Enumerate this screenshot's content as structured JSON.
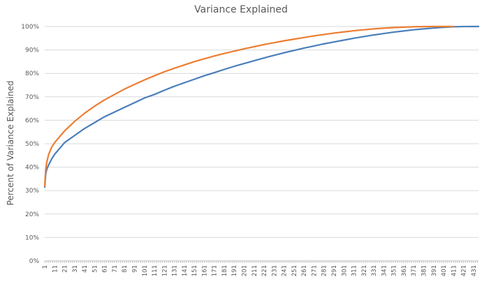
{
  "chart_data": {
    "type": "line",
    "title": "Variance Explained",
    "xlabel": "",
    "ylabel": "Percent of Variance Explained",
    "x_start": 1,
    "x_end": 436,
    "x_tick_labels": [
      "1",
      "11",
      "21",
      "31",
      "41",
      "51",
      "61",
      "71",
      "81",
      "91",
      "101",
      "111",
      "121",
      "131",
      "141",
      "151",
      "161",
      "171",
      "181",
      "191",
      "201",
      "211",
      "221",
      "231",
      "241",
      "251",
      "261",
      "271",
      "281",
      "291",
      "301",
      "311",
      "321",
      "331",
      "341",
      "351",
      "361",
      "371",
      "381",
      "391",
      "401",
      "411",
      "421",
      "431"
    ],
    "ylim": [
      0,
      100
    ],
    "y_tick_labels": [
      "0%",
      "10%",
      "20%",
      "30%",
      "40%",
      "50%",
      "60%",
      "70%",
      "80%",
      "90%",
      "100%"
    ],
    "grid": true,
    "legend": "none",
    "series": [
      {
        "color": "#4a7ebb",
        "points": [
          [
            1,
            31.5
          ],
          [
            2,
            37
          ],
          [
            3,
            39
          ],
          [
            5,
            41
          ],
          [
            8,
            43.5
          ],
          [
            11,
            45.5
          ],
          [
            16,
            48
          ],
          [
            21,
            50.5
          ],
          [
            31,
            53.5
          ],
          [
            41,
            56.5
          ],
          [
            51,
            59
          ],
          [
            61,
            61.5
          ],
          [
            71,
            63.5
          ],
          [
            81,
            65.5
          ],
          [
            91,
            67.5
          ],
          [
            101,
            69.5
          ],
          [
            111,
            71
          ],
          [
            121,
            72.8
          ],
          [
            131,
            74.5
          ],
          [
            141,
            76
          ],
          [
            151,
            77.5
          ],
          [
            161,
            79
          ],
          [
            171,
            80.3
          ],
          [
            181,
            81.7
          ],
          [
            191,
            83
          ],
          [
            201,
            84.2
          ],
          [
            211,
            85.4
          ],
          [
            221,
            86.6
          ],
          [
            231,
            87.7
          ],
          [
            241,
            88.8
          ],
          [
            251,
            89.8
          ],
          [
            261,
            90.8
          ],
          [
            271,
            91.7
          ],
          [
            281,
            92.6
          ],
          [
            291,
            93.4
          ],
          [
            301,
            94.2
          ],
          [
            311,
            95
          ],
          [
            321,
            95.7
          ],
          [
            331,
            96.4
          ],
          [
            341,
            97
          ],
          [
            351,
            97.6
          ],
          [
            361,
            98.1
          ],
          [
            371,
            98.6
          ],
          [
            381,
            99
          ],
          [
            391,
            99.35
          ],
          [
            401,
            99.65
          ],
          [
            411,
            99.88
          ],
          [
            421,
            99.98
          ],
          [
            431,
            100
          ],
          [
            436,
            100
          ]
        ]
      },
      {
        "color": "#ed7d31",
        "points": [
          [
            1,
            32
          ],
          [
            2,
            39
          ],
          [
            3,
            42
          ],
          [
            5,
            45.5
          ],
          [
            8,
            48.5
          ],
          [
            11,
            50.5
          ],
          [
            16,
            53
          ],
          [
            21,
            55.5
          ],
          [
            31,
            59.5
          ],
          [
            41,
            63
          ],
          [
            51,
            66
          ],
          [
            61,
            68.7
          ],
          [
            71,
            71
          ],
          [
            81,
            73.3
          ],
          [
            91,
            75.3
          ],
          [
            101,
            77.2
          ],
          [
            111,
            79
          ],
          [
            121,
            80.7
          ],
          [
            131,
            82.2
          ],
          [
            141,
            83.6
          ],
          [
            151,
            85
          ],
          [
            161,
            86.2
          ],
          [
            171,
            87.4
          ],
          [
            181,
            88.5
          ],
          [
            191,
            89.5
          ],
          [
            201,
            90.5
          ],
          [
            211,
            91.4
          ],
          [
            221,
            92.3
          ],
          [
            231,
            93.1
          ],
          [
            241,
            93.9
          ],
          [
            251,
            94.6
          ],
          [
            261,
            95.3
          ],
          [
            271,
            96
          ],
          [
            281,
            96.6
          ],
          [
            291,
            97.2
          ],
          [
            301,
            97.7
          ],
          [
            311,
            98.2
          ],
          [
            321,
            98.6
          ],
          [
            331,
            99
          ],
          [
            341,
            99.3
          ],
          [
            351,
            99.55
          ],
          [
            361,
            99.75
          ],
          [
            371,
            99.88
          ],
          [
            381,
            99.96
          ],
          [
            391,
            100
          ],
          [
            401,
            100
          ],
          [
            411,
            100
          ]
        ]
      }
    ]
  }
}
